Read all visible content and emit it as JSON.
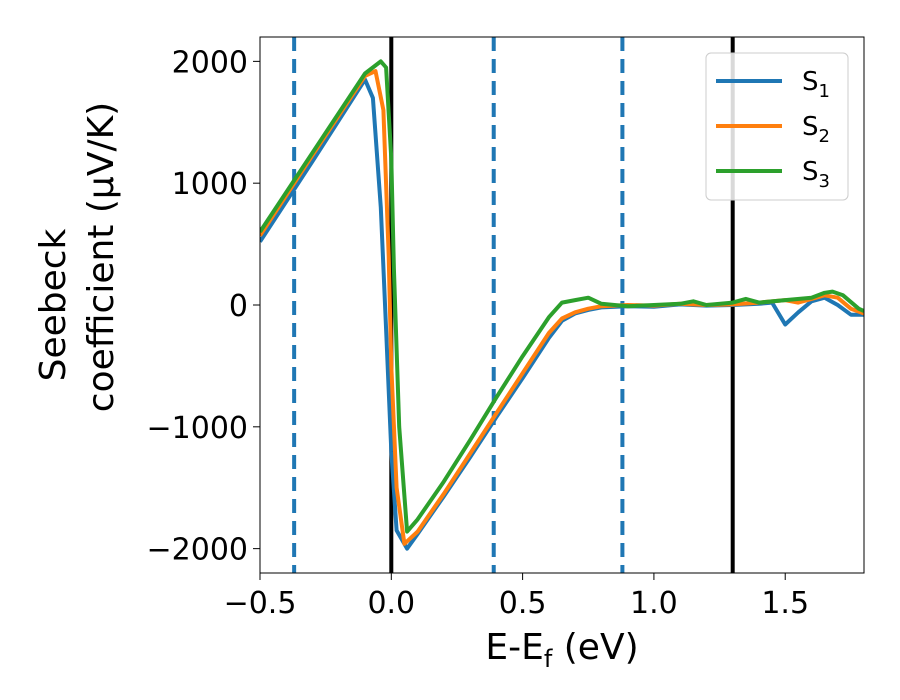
{
  "chart_data": {
    "type": "line",
    "title": "",
    "xlabel": {
      "main": "E-E",
      "sub": "f",
      "unit": " (eV)"
    },
    "ylabel": {
      "line1": "Seebeck",
      "line2": "coefficient  (μV/K)"
    },
    "xlim": [
      -0.5,
      1.8
    ],
    "ylim": [
      -2200,
      2200
    ],
    "xticks": [
      -0.5,
      0.0,
      0.5,
      1.0,
      1.5
    ],
    "xtick_labels": [
      "−0.5",
      "0.0",
      "0.5",
      "1.0",
      "1.5"
    ],
    "yticks": [
      2000,
      1000,
      0,
      -1000,
      -2000
    ],
    "ytick_labels": [
      "2000",
      "1000",
      "0",
      "−1000",
      "−2000"
    ],
    "grid": false,
    "legend_position": "top-right",
    "vlines_solid": [
      0.0,
      1.3
    ],
    "vlines_dashed": [
      -0.37,
      0.39,
      0.88
    ],
    "vline_colors": {
      "solid": "#000000",
      "dashed": "#1f77b4"
    },
    "series": [
      {
        "name": "S",
        "name_sub": "1",
        "color": "#1f77b4",
        "x": [
          -0.5,
          -0.3,
          -0.1,
          -0.07,
          -0.04,
          -0.02,
          0.0,
          0.02,
          0.06,
          0.1,
          0.2,
          0.3,
          0.4,
          0.5,
          0.6,
          0.65,
          0.7,
          0.75,
          0.8,
          0.9,
          1.0,
          1.1,
          1.2,
          1.3,
          1.4,
          1.45,
          1.5,
          1.55,
          1.6,
          1.65,
          1.7,
          1.75,
          1.8
        ],
        "y": [
          520,
          1180,
          1850,
          1700,
          800,
          -200,
          -1200,
          -1850,
          -2000,
          -1880,
          -1570,
          -1250,
          -920,
          -600,
          -270,
          -130,
          -70,
          -40,
          -20,
          -10,
          -15,
          5,
          -5,
          0,
          10,
          20,
          -160,
          -60,
          30,
          60,
          0,
          -80,
          -80
        ]
      },
      {
        "name": "S",
        "name_sub": "2",
        "color": "#ff7f0e",
        "x": [
          -0.5,
          -0.3,
          -0.1,
          -0.06,
          -0.03,
          -0.01,
          0.0,
          0.02,
          0.05,
          0.1,
          0.2,
          0.3,
          0.4,
          0.5,
          0.6,
          0.65,
          0.7,
          0.75,
          0.8,
          0.9,
          1.0,
          1.1,
          1.2,
          1.3,
          1.4,
          1.5,
          1.55,
          1.6,
          1.65,
          1.7,
          1.75,
          1.8
        ],
        "y": [
          570,
          1230,
          1880,
          1920,
          1600,
          400,
          -500,
          -1500,
          -1960,
          -1860,
          -1550,
          -1220,
          -890,
          -560,
          -230,
          -110,
          -60,
          -30,
          -10,
          0,
          -5,
          10,
          0,
          5,
          20,
          40,
          20,
          50,
          80,
          60,
          -30,
          -70
        ]
      },
      {
        "name": "S",
        "name_sub": "3",
        "color": "#2ca02c",
        "x": [
          -0.5,
          -0.3,
          -0.1,
          -0.04,
          -0.02,
          0.0,
          0.01,
          0.03,
          0.06,
          0.1,
          0.2,
          0.3,
          0.4,
          0.5,
          0.6,
          0.65,
          0.7,
          0.75,
          0.8,
          0.85,
          0.9,
          1.0,
          1.1,
          1.15,
          1.2,
          1.3,
          1.35,
          1.4,
          1.5,
          1.6,
          1.65,
          1.68,
          1.72,
          1.78,
          1.8
        ],
        "y": [
          600,
          1250,
          1900,
          2000,
          1950,
          1200,
          300,
          -1000,
          -1860,
          -1760,
          -1450,
          -1110,
          -760,
          -420,
          -100,
          20,
          40,
          60,
          10,
          0,
          -10,
          0,
          10,
          30,
          0,
          20,
          50,
          20,
          40,
          60,
          100,
          110,
          80,
          -30,
          -50
        ]
      }
    ]
  }
}
